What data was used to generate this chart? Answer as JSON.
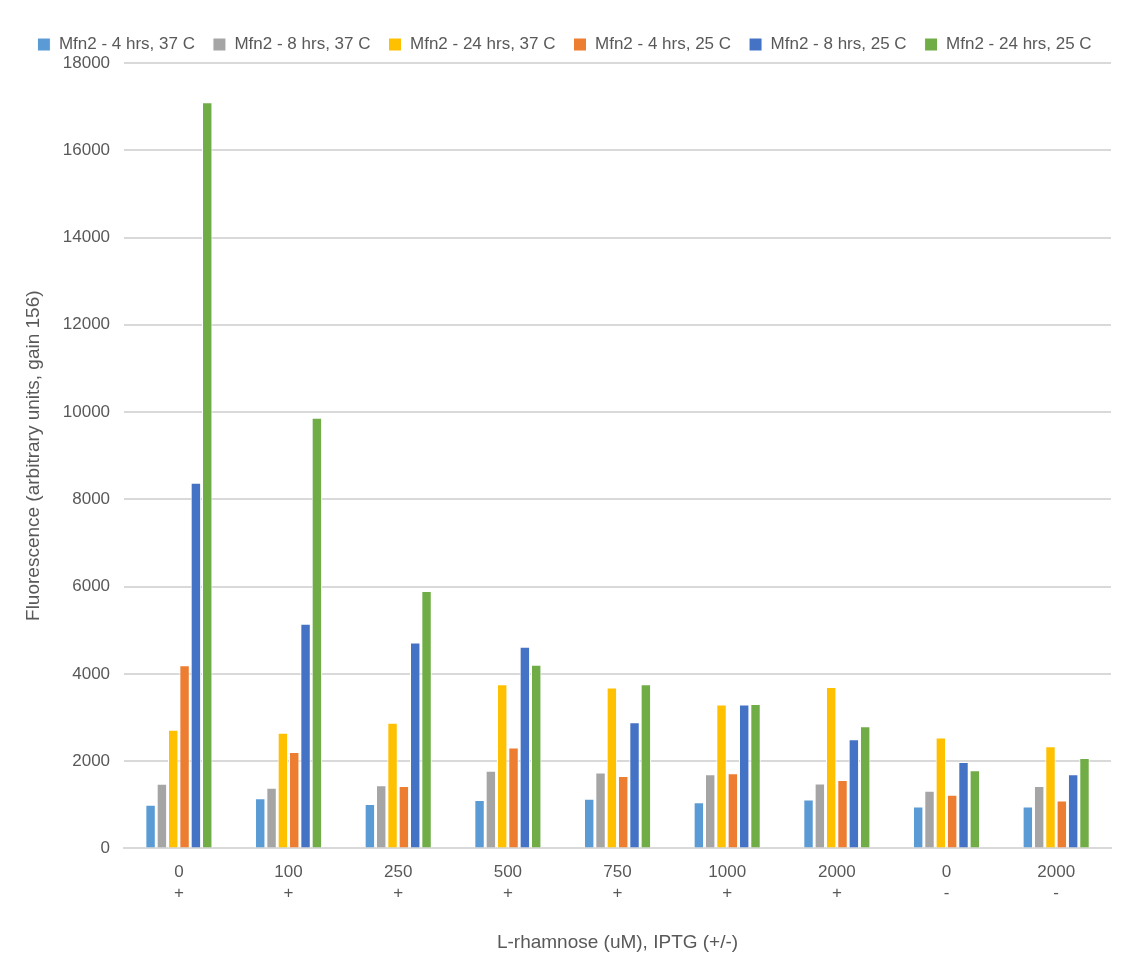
{
  "chart_data": {
    "type": "bar",
    "xlabel": "L-rhamnose (uM), IPTG (+/-)",
    "ylabel": "Fluorescence (arbitrary units, gain 156)",
    "categories": [
      "0\n+",
      "100\n+",
      "250\n+",
      "500\n+",
      "750\n+",
      "1000\n+",
      "2000\n+",
      "0\n-",
      "2000\n-"
    ],
    "series": [
      {
        "name": "Mfn2 - 4 hrs, 37 C",
        "color": "#5b9bd5",
        "values": [
          1000,
          1150,
          1020,
          1110,
          1140,
          1060,
          1120,
          960,
          960
        ]
      },
      {
        "name": "Mfn2 - 8 hrs, 37 C",
        "color": "#a5a5a5",
        "values": [
          1480,
          1390,
          1450,
          1780,
          1740,
          1700,
          1490,
          1320,
          1430
        ]
      },
      {
        "name": "Mfn2 - 24 hrs, 37 C",
        "color": "#ffc000",
        "values": [
          2720,
          2650,
          2880,
          3760,
          3690,
          3300,
          3700,
          2540,
          2340
        ]
      },
      {
        "name": "Mfn2 - 4 hrs, 25 C",
        "color": "#ed7d31",
        "values": [
          4200,
          2210,
          1430,
          2310,
          1660,
          1720,
          1570,
          1230,
          1100
        ]
      },
      {
        "name": "Mfn2 - 8 hrs, 25 C",
        "color": "#4472c4",
        "values": [
          8380,
          5150,
          4720,
          4620,
          2890,
          3300,
          2500,
          1980,
          1700
        ]
      },
      {
        "name": "Mfn2 - 24 hrs, 25 C",
        "color": "#70ad47",
        "values": [
          17100,
          9870,
          5900,
          4210,
          3760,
          3310,
          2800,
          1790,
          2070
        ]
      }
    ],
    "ylim": [
      0,
      18000
    ],
    "yticks": [
      0,
      2000,
      4000,
      6000,
      8000,
      10000,
      12000,
      14000,
      16000,
      18000
    ],
    "grid": "y",
    "legend": "top"
  }
}
